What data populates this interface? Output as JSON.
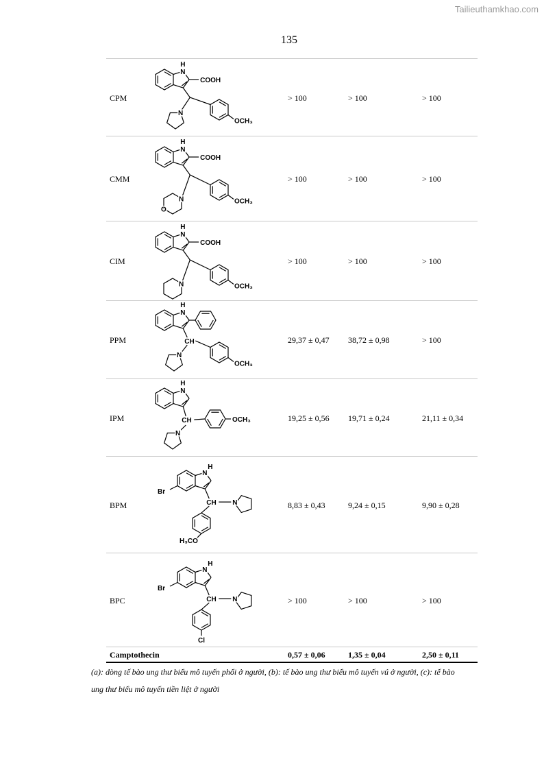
{
  "watermark": "Tailieuthamkhao.com",
  "page_number": "135",
  "rows": [
    {
      "name": "CPM",
      "a": "> 100",
      "b": "> 100",
      "c": "> 100",
      "structure": {
        "h": "H",
        "n": "N",
        "c2": "COOH",
        "amine_n": "N",
        "aryl_sub": "OCH₃"
      }
    },
    {
      "name": "CMM",
      "a": "> 100",
      "b": "> 100",
      "c": "> 100",
      "structure": {
        "h": "H",
        "n": "N",
        "c2": "COOH",
        "amine_n": "N",
        "amine_o": "O",
        "aryl_sub": "OCH₃"
      }
    },
    {
      "name": "CIM",
      "a": "> 100",
      "b": "> 100",
      "c": "> 100",
      "structure": {
        "h": "H",
        "n": "N",
        "c2": "COOH",
        "amine_n": "N",
        "aryl_sub": "OCH₃"
      }
    },
    {
      "name": "PPM",
      "a": "29,37 ± 0,47",
      "b": "38,72 ± 0,98",
      "c": "> 100",
      "structure": {
        "h": "H",
        "n": "N",
        "ch": "CH",
        "amine_n": "N",
        "aryl_sub": "OCH₃"
      }
    },
    {
      "name": "IPM",
      "a": "19,25 ± 0,56",
      "b": "19,71 ± 0,24",
      "c": "21,11 ± 0,34",
      "structure": {
        "h": "H",
        "n": "N",
        "ch": "CH",
        "amine_n": "N",
        "aryl_sub": "OCH₃"
      }
    },
    {
      "name": "BPM",
      "a": "8,83 ± 0,43",
      "b": "9,24 ± 0,15",
      "c": "9,90 ± 0,28",
      "structure": {
        "h": "H",
        "n": "N",
        "br": "Br",
        "ch": "CH",
        "amine_n": "N",
        "aryl_sub": "H₃CO"
      }
    },
    {
      "name": "BPC",
      "a": "> 100",
      "b": "> 100",
      "c": "> 100",
      "structure": {
        "h": "H",
        "n": "N",
        "br": "Br",
        "ch": "CH",
        "amine_n": "N",
        "aryl_sub": "Cl"
      }
    }
  ],
  "reference": {
    "name": "Camptothecin",
    "a": "0,57 ± 0,06",
    "b": "1,35 ± 0,04",
    "c": "2,50 ± 0,11"
  },
  "footnote": {
    "line1": "(a): dòng tế bào ung thư biểu mô tuyến phổi ở người, (b): tế bào ung thư biểu mô tuyến vú ở người, (c): tế bào",
    "line2": "ung thư biểu mô tuyến tiền liệt ở người"
  }
}
